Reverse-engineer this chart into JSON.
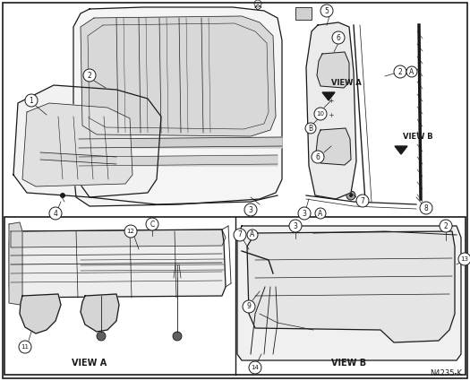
{
  "figure_number": "N4235-K",
  "bg_color": "#ffffff",
  "line_color": "#1a1a1a",
  "gray_fill": "#e8e8e8",
  "dark_gray": "#c0c0c0",
  "fig_width": 5.25,
  "fig_height": 4.25,
  "dpi": 100,
  "bottom_left_label": "VIEW A",
  "bottom_right_label": "VIEW B",
  "top_view_a_label": "VIEW A",
  "top_view_b_label": "VIEW B"
}
